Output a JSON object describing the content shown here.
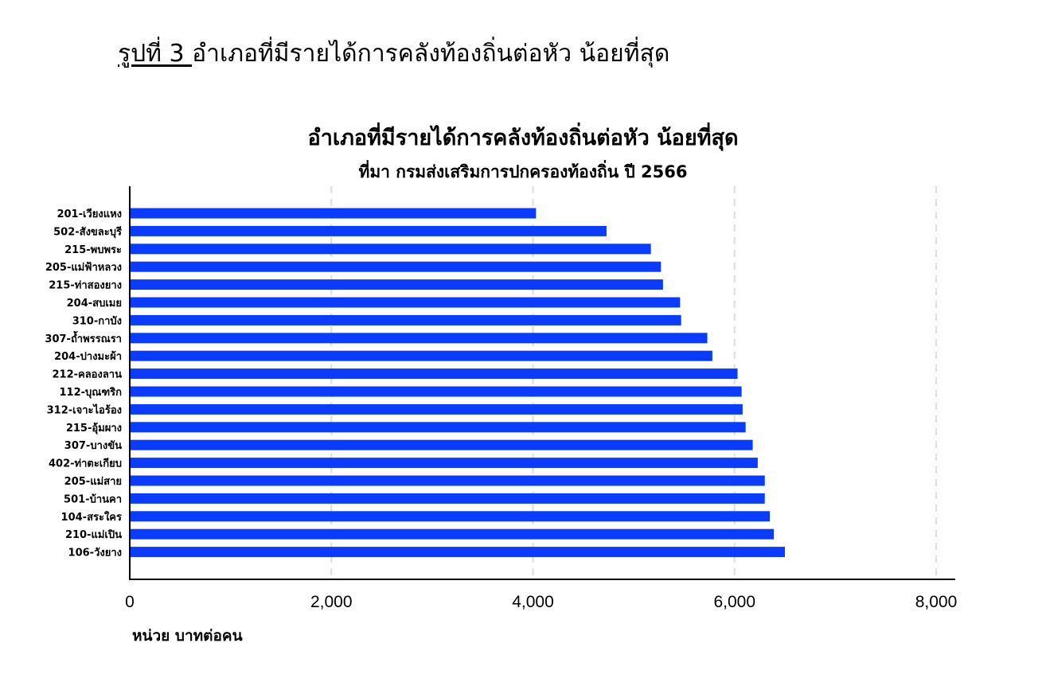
{
  "figure_caption": {
    "number": "รูปที่ 3 ",
    "text": "อำเภอที่มีรายได้การคลังท้องถิ่นต่อหัว น้อยที่สุด"
  },
  "chart_data": {
    "type": "bar",
    "orientation": "horizontal",
    "title": "อำเภอที่มีรายได้การคลังท้องถิ่นต่อหัว น้อยที่สุด",
    "subtitle": "ที่มา กรมส่งเสริมการปกครองท้องถิ่น ปี 2566",
    "xlabel": "หน่วย บาทต่อคน",
    "ylabel": "",
    "xlim": [
      0,
      8000
    ],
    "xticks": [
      0,
      2000,
      4000,
      6000,
      8000
    ],
    "xtick_labels": [
      "0",
      "2,000",
      "4,000",
      "6,000",
      "8,000"
    ],
    "grid": "vertical-dashed",
    "bar_color": "#0a3cff",
    "categories": [
      "201-เวียงแหง",
      "502-สังขละบุรี",
      "215-พบพระ",
      "205-แม่ฟ้าหลวง",
      "215-ท่าสองยาง",
      "204-สบเมย",
      "310-กาบัง",
      "307-ถ้ำพรรณรา",
      "204-ปางมะผ้า",
      "212-คลองลาน",
      "112-บุณฑริก",
      "312-เจาะไอร้อง",
      "215-อุ้มผาง",
      "307-บางขัน",
      "402-ท่าตะเกียบ",
      "205-แม่สาย",
      "501-บ้านคา",
      "104-สระใคร",
      "210-แม่เปิน",
      "106-วังยาง"
    ],
    "values": [
      4030,
      4730,
      5170,
      5270,
      5290,
      5460,
      5470,
      5730,
      5780,
      6030,
      6070,
      6080,
      6110,
      6180,
      6230,
      6300,
      6300,
      6350,
      6390,
      6500
    ]
  }
}
